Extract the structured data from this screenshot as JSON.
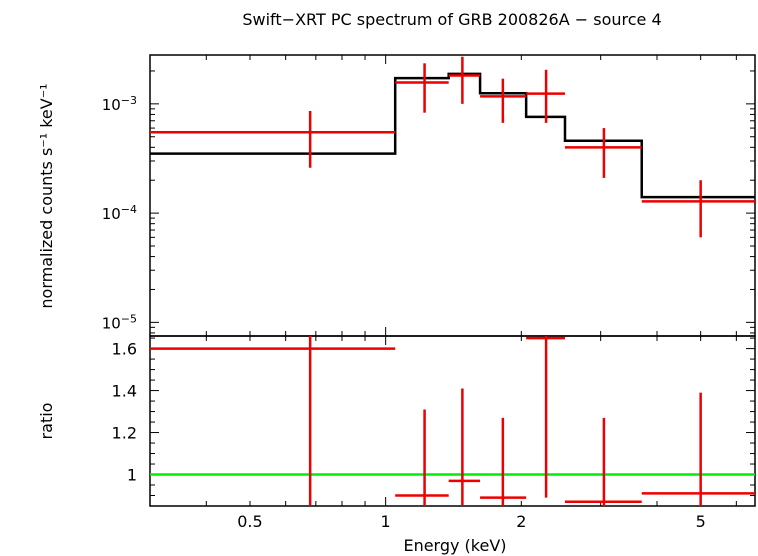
{
  "chart_data": [
    {
      "type": "line",
      "panel": "spectrum",
      "title": "Swift−XRT PC spectrum of GRB 200826A − source 4",
      "ylabel": "normalized counts s⁻¹ keV⁻¹",
      "xlabel": "",
      "x_scale": "log",
      "y_scale": "log",
      "xlim": [
        0.3,
        6.6
      ],
      "ylim": [
        7.5e-06,
        0.0028
      ],
      "y_ticks": [
        {
          "value": 0.001,
          "mant": "10",
          "exp": "−3"
        },
        {
          "value": 0.0001,
          "mant": "10",
          "exp": "−4"
        },
        {
          "value": 1e-05,
          "mant": "10",
          "exp": "−5"
        }
      ],
      "data_points": [
        {
          "x": 0.68,
          "xlo": 0.3,
          "xhi": 1.05,
          "y": 0.00055,
          "ylo": 0.00026,
          "yhi": 0.00086
        },
        {
          "x": 1.22,
          "xlo": 1.05,
          "xhi": 1.38,
          "y": 0.00157,
          "ylo": 0.00083,
          "yhi": 0.00235
        },
        {
          "x": 1.48,
          "xlo": 1.38,
          "xhi": 1.62,
          "y": 0.00182,
          "ylo": 0.001,
          "yhi": 0.0027
        },
        {
          "x": 1.82,
          "xlo": 1.62,
          "xhi": 2.05,
          "y": 0.00117,
          "ylo": 0.00067,
          "yhi": 0.0017
        },
        {
          "x": 2.27,
          "xlo": 2.05,
          "xhi": 2.5,
          "y": 0.00124,
          "ylo": 0.00067,
          "yhi": 0.00205
        },
        {
          "x": 3.05,
          "xlo": 2.5,
          "xhi": 3.7,
          "y": 0.0004,
          "ylo": 0.00021,
          "yhi": 0.0006
        },
        {
          "x": 5.0,
          "xlo": 3.7,
          "xhi": 6.6,
          "y": 0.000128,
          "ylo": 6e-05,
          "yhi": 0.0002
        }
      ],
      "model_steps": [
        {
          "xlo": 0.3,
          "xhi": 1.05,
          "y": 0.00035
        },
        {
          "xlo": 1.05,
          "xhi": 1.38,
          "y": 0.00172
        },
        {
          "xlo": 1.38,
          "xhi": 1.62,
          "y": 0.00188
        },
        {
          "xlo": 1.62,
          "xhi": 2.05,
          "y": 0.00125
        },
        {
          "xlo": 2.05,
          "xhi": 2.5,
          "y": 0.00076
        },
        {
          "xlo": 2.5,
          "xhi": 3.7,
          "y": 0.00046
        },
        {
          "xlo": 3.7,
          "xhi": 6.6,
          "y": 0.00014
        }
      ],
      "data_color": "#ee0000",
      "model_color": "#000000"
    },
    {
      "type": "scatter",
      "panel": "ratio",
      "xlabel": "Energy (keV)",
      "ylabel": "ratio",
      "x_scale": "log",
      "xlim": [
        0.3,
        6.6
      ],
      "ylim": [
        0.85,
        1.66
      ],
      "x_ticks": [
        {
          "value": 0.5,
          "label": "0.5"
        },
        {
          "value": 1,
          "label": "1"
        },
        {
          "value": 2,
          "label": "2"
        },
        {
          "value": 5,
          "label": "5"
        }
      ],
      "y_ticks": [
        {
          "value": 1,
          "label": "1"
        },
        {
          "value": 1.2,
          "label": "1.2"
        },
        {
          "value": 1.4,
          "label": "1.4"
        },
        {
          "value": 1.6,
          "label": "1.6"
        }
      ],
      "data_points": [
        {
          "x": 0.68,
          "xlo": 0.3,
          "xhi": 1.05,
          "y": 1.6,
          "ylo": 0.85,
          "yhi": 1.66
        },
        {
          "x": 1.22,
          "xlo": 1.05,
          "xhi": 1.38,
          "y": 0.9,
          "ylo": 0.85,
          "yhi": 1.31
        },
        {
          "x": 1.48,
          "xlo": 1.38,
          "xhi": 1.62,
          "y": 0.97,
          "ylo": 0.85,
          "yhi": 1.41
        },
        {
          "x": 1.82,
          "xlo": 1.62,
          "xhi": 2.05,
          "y": 0.89,
          "ylo": 0.85,
          "yhi": 1.27
        },
        {
          "x": 2.27,
          "xlo": 2.05,
          "xhi": 2.5,
          "y": 1.65,
          "ylo": 0.89,
          "yhi": 1.66
        },
        {
          "x": 3.05,
          "xlo": 2.5,
          "xhi": 3.7,
          "y": 0.87,
          "ylo": 0.85,
          "yhi": 1.27
        },
        {
          "x": 5.0,
          "xlo": 3.7,
          "xhi": 6.6,
          "y": 0.91,
          "ylo": 0.85,
          "yhi": 1.39
        }
      ],
      "reference_line": 1,
      "data_color": "#ee0000",
      "reference_color": "#00ee00"
    }
  ]
}
